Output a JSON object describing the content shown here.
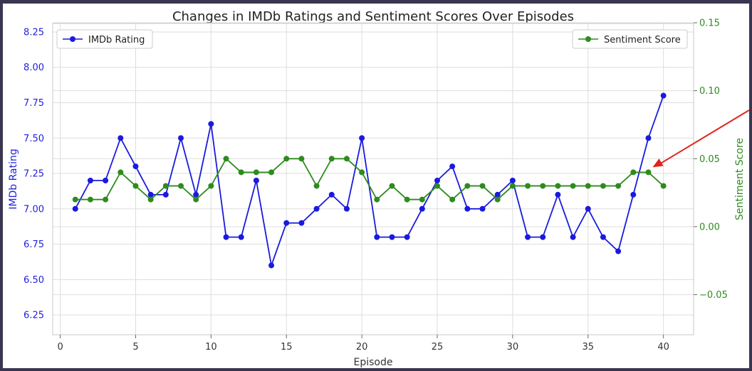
{
  "chart_data": {
    "type": "line",
    "title": "Changes in IMDb Ratings and Sentiment Scores Over Episodes",
    "xlabel": "Episode",
    "ylabel_left": "IMDb Rating",
    "ylabel_right": "Sentiment Score",
    "xlim": [
      -0.5,
      42
    ],
    "ylim_left": [
      6.11,
      8.31
    ],
    "ylim_right": [
      -0.0795,
      0.1495
    ],
    "x_ticks": [
      0,
      5,
      10,
      15,
      20,
      25,
      30,
      35,
      40
    ],
    "y_left_ticks": [
      6.25,
      6.5,
      6.75,
      7.0,
      7.25,
      7.5,
      7.75,
      8.0,
      8.25
    ],
    "y_right_ticks": [
      -0.05,
      0.0,
      0.05,
      0.1,
      0.15
    ],
    "y_right_tick_labels": [
      "−0.05",
      "0.00",
      "0.05",
      "0.10",
      "0.15"
    ],
    "grid": true,
    "x": [
      1,
      2,
      3,
      4,
      5,
      6,
      7,
      8,
      9,
      10,
      11,
      12,
      13,
      14,
      15,
      16,
      17,
      18,
      19,
      20,
      21,
      22,
      23,
      24,
      25,
      26,
      27,
      28,
      29,
      30,
      31,
      32,
      33,
      34,
      35,
      36,
      37,
      38,
      39,
      40
    ],
    "series": [
      {
        "name": "IMDb Rating",
        "axis": "left",
        "color": "#1a1adf",
        "legend_position": "upper-left",
        "values": [
          7.0,
          7.2,
          7.2,
          7.5,
          7.3,
          7.1,
          7.1,
          7.5,
          7.1,
          7.6,
          6.8,
          6.8,
          7.2,
          6.6,
          6.9,
          6.9,
          7.0,
          7.1,
          7.0,
          7.5,
          6.8,
          6.8,
          6.8,
          7.0,
          7.2,
          7.3,
          7.0,
          7.0,
          7.1,
          7.2,
          6.8,
          6.8,
          7.1,
          6.8,
          7.0,
          6.8,
          6.7,
          7.1,
          7.5,
          7.8
        ]
      },
      {
        "name": "Sentiment Score",
        "axis": "right",
        "color": "#2e8b1e",
        "legend_position": "upper-right",
        "values": [
          0.02,
          0.02,
          0.02,
          0.04,
          0.03,
          0.02,
          0.03,
          0.03,
          0.02,
          0.03,
          0.05,
          0.04,
          0.04,
          0.04,
          0.05,
          0.05,
          0.03,
          0.05,
          0.05,
          0.04,
          0.02,
          0.03,
          0.02,
          0.02,
          0.03,
          0.02,
          0.03,
          0.03,
          0.02,
          0.03,
          0.03,
          0.03,
          0.03,
          0.03,
          0.03,
          0.03,
          0.03,
          0.04,
          0.04,
          0.03
        ]
      }
    ],
    "annotation": {
      "type": "arrow",
      "color": "#e0241b",
      "points_to": {
        "x": 39,
        "series": "Sentiment Score"
      }
    }
  }
}
